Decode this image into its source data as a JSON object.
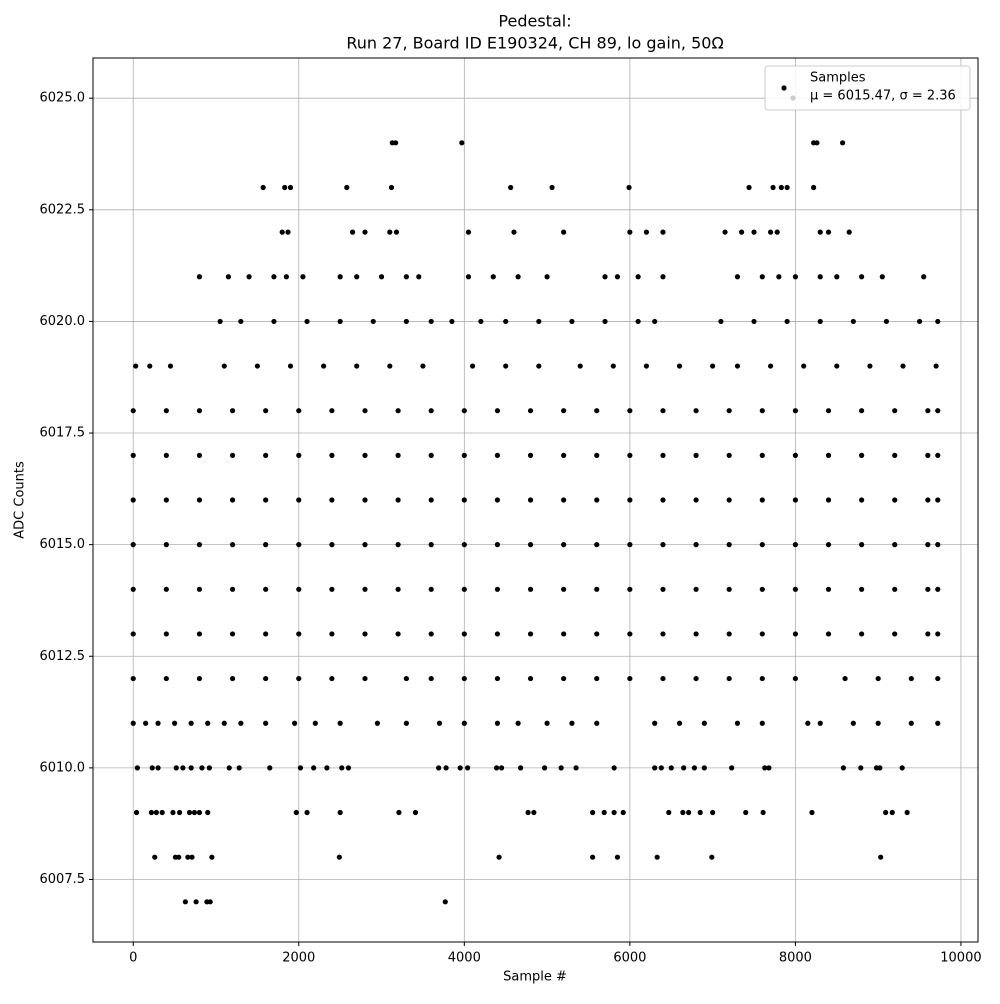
{
  "chart_data": {
    "type": "scatter",
    "title": "Pedestal:",
    "subtitle": "Run 27, Board ID E190324, CH 89, lo gain, 50Ω",
    "x_label": "Sample #",
    "y_label": "ADC Counts",
    "xlim": [
      -486,
      10206
    ],
    "ylim": [
      6006.1,
      6025.9
    ],
    "xticks": [
      0,
      2000,
      4000,
      6000,
      8000,
      10000
    ],
    "yticks": [
      6007.5,
      {
        "value": 6010,
        "label": "6010.0"
      },
      6012.5,
      {
        "value": 6015,
        "label": "6015.0"
      },
      6017.5,
      {
        "value": 6020,
        "label": "6020.0"
      },
      6022.5,
      {
        "value": 6025,
        "label": "6025.0"
      }
    ],
    "grid": true,
    "legend": "upper right",
    "stats_label": "μ = 6015.47, σ = 2.36",
    "series": [
      {
        "name": "Samples",
        "color": "#000000",
        "x": [
          0,
          400,
          800,
          1200,
          1600,
          2000,
          2400,
          2800,
          3200,
          3600,
          4000,
          4400,
          4800,
          5200,
          5600,
          6000,
          6400,
          6800,
          7200,
          7600,
          8000,
          8400,
          8800,
          9200,
          9600,
          9720,
          0,
          400,
          800,
          1200,
          1600,
          2000,
          2400,
          2800,
          3200,
          3600,
          4000,
          4400,
          4800,
          5200,
          5600,
          6000,
          6400,
          6800,
          7200,
          7600,
          8000,
          8400,
          8800,
          9200,
          9600,
          9720,
          0,
          400,
          800,
          1200,
          1600,
          2000,
          2400,
          2800,
          3200,
          3600,
          4000,
          4400,
          4800,
          5200,
          5600,
          6000,
          6400,
          6800,
          7200,
          7600,
          8000,
          8400,
          8800,
          9200,
          9600,
          9720,
          0,
          400,
          800,
          1200,
          1600,
          2000,
          2400,
          2800,
          3200,
          3600,
          4000,
          4400,
          4800,
          5200,
          5600,
          6000,
          6400,
          6800,
          7200,
          7600,
          8000,
          8400,
          8800,
          9200,
          9600,
          9720,
          0,
          400,
          800,
          1200,
          1600,
          2000,
          2400,
          2800,
          3200,
          3600,
          4000,
          4400,
          4800,
          5200,
          5600,
          6000,
          6400,
          6800,
          7200,
          7600,
          8000,
          8400,
          8800,
          9200,
          9600,
          9720,
          0,
          400,
          800,
          1200,
          1600,
          2000,
          2400,
          2800,
          3200,
          3600,
          4000,
          4400,
          4800,
          5200,
          5600,
          6000,
          6400,
          6800,
          7200,
          7600,
          8000,
          8400,
          8800,
          9200,
          9600,
          9720,
          0,
          400,
          800,
          1200,
          1600,
          2000,
          2400,
          2800,
          3300,
          3600,
          4000,
          4400,
          4800,
          5200,
          5600,
          6000,
          6400,
          6800,
          7200,
          7600,
          8000,
          8600,
          9000,
          9400,
          9720,
          30,
          200,
          450,
          1100,
          1500,
          1900,
          2300,
          2700,
          3100,
          3500,
          4100,
          4500,
          4900,
          5400,
          5800,
          6200,
          6600,
          7000,
          7300,
          7700,
          8100,
          8500,
          8900,
          9300,
          9700,
          1050,
          1300,
          1700,
          2100,
          2500,
          2900,
          3300,
          3600,
          3850,
          4200,
          4500,
          4900,
          5300,
          5700,
          6100,
          6300,
          7100,
          7500,
          7900,
          8300,
          8700,
          9100,
          9500,
          9720,
          0,
          150,
          300,
          500,
          700,
          900,
          1100,
          1300,
          1600,
          1950,
          2200,
          2500,
          2950,
          3300,
          3700,
          4000,
          4400,
          4650,
          5000,
          5300,
          5600,
          6300,
          6600,
          6900,
          7300,
          7600,
          8150,
          8300,
          8700,
          9000,
          9400,
          9720,
          800,
          1150,
          1400,
          1700,
          1850,
          2050,
          2500,
          2700,
          3000,
          3300,
          3450,
          4050,
          4350,
          4650,
          5000,
          5700,
          5850,
          6100,
          6400,
          7300,
          7600,
          7800,
          8000,
          8300,
          8500,
          8800,
          9050,
          9550,
          1800,
          1870,
          2650,
          2800,
          3100,
          3180,
          4050,
          4600,
          5200,
          6000,
          6200,
          6400,
          7150,
          7350,
          7500,
          7700,
          7780,
          8300,
          8400,
          8650,
          1570,
          1830,
          1900,
          2580,
          3120,
          4560,
          5060,
          5990,
          7440,
          7730,
          7830,
          7900,
          8220,
          3130,
          3170,
          3970,
          8220,
          8260,
          8570,
          50,
          230,
          300,
          520,
          600,
          700,
          830,
          920,
          1160,
          1280,
          1650,
          2020,
          2180,
          2340,
          2520,
          2600,
          3690,
          3780,
          3950,
          4040,
          4390,
          4450,
          4680,
          4970,
          5170,
          5350,
          5810,
          6300,
          6380,
          6500,
          6650,
          6780,
          6900,
          7230,
          7630,
          7680,
          8580,
          8790,
          8980,
          9020,
          9290,
          40,
          220,
          280,
          350,
          480,
          560,
          680,
          740,
          800,
          900,
          1970,
          2100,
          2500,
          3210,
          3410,
          4770,
          4840,
          5550,
          5690,
          5810,
          5920,
          6470,
          6640,
          6710,
          6850,
          7000,
          7400,
          7610,
          8200,
          9090,
          9170,
          9350,
          260,
          510,
          550,
          660,
          710,
          950,
          2490,
          4420,
          5550,
          5850,
          6330,
          6990,
          9030,
          630,
          760,
          890,
          930,
          3770
        ],
        "values": [
          6013,
          6013,
          6013,
          6013,
          6013,
          6013,
          6013,
          6013,
          6013,
          6013,
          6013,
          6013,
          6013,
          6013,
          6013,
          6013,
          6013,
          6013,
          6013,
          6013,
          6013,
          6013,
          6013,
          6013,
          6013,
          6013,
          6014,
          6014,
          6014,
          6014,
          6014,
          6014,
          6014,
          6014,
          6014,
          6014,
          6014,
          6014,
          6014,
          6014,
          6014,
          6014,
          6014,
          6014,
          6014,
          6014,
          6014,
          6014,
          6014,
          6014,
          6014,
          6014,
          6015,
          6015,
          6015,
          6015,
          6015,
          6015,
          6015,
          6015,
          6015,
          6015,
          6015,
          6015,
          6015,
          6015,
          6015,
          6015,
          6015,
          6015,
          6015,
          6015,
          6015,
          6015,
          6015,
          6015,
          6015,
          6015,
          6016,
          6016,
          6016,
          6016,
          6016,
          6016,
          6016,
          6016,
          6016,
          6016,
          6016,
          6016,
          6016,
          6016,
          6016,
          6016,
          6016,
          6016,
          6016,
          6016,
          6016,
          6016,
          6016,
          6016,
          6016,
          6016,
          6017,
          6017,
          6017,
          6017,
          6017,
          6017,
          6017,
          6017,
          6017,
          6017,
          6017,
          6017,
          6017,
          6017,
          6017,
          6017,
          6017,
          6017,
          6017,
          6017,
          6017,
          6017,
          6017,
          6017,
          6017,
          6017,
          6018,
          6018,
          6018,
          6018,
          6018,
          6018,
          6018,
          6018,
          6018,
          6018,
          6018,
          6018,
          6018,
          6018,
          6018,
          6018,
          6018,
          6018,
          6018,
          6018,
          6018,
          6018,
          6018,
          6018,
          6018,
          6018,
          6012,
          6012,
          6012,
          6012,
          6012,
          6012,
          6012,
          6012,
          6012,
          6012,
          6012,
          6012,
          6012,
          6012,
          6012,
          6012,
          6012,
          6012,
          6012,
          6012,
          6012,
          6012,
          6012,
          6012,
          6012,
          6019,
          6019,
          6019,
          6019,
          6019,
          6019,
          6019,
          6019,
          6019,
          6019,
          6019,
          6019,
          6019,
          6019,
          6019,
          6019,
          6019,
          6019,
          6019,
          6019,
          6019,
          6019,
          6019,
          6019,
          6019,
          6020,
          6020,
          6020,
          6020,
          6020,
          6020,
          6020,
          6020,
          6020,
          6020,
          6020,
          6020,
          6020,
          6020,
          6020,
          6020,
          6020,
          6020,
          6020,
          6020,
          6020,
          6020,
          6020,
          6020,
          6011,
          6011,
          6011,
          6011,
          6011,
          6011,
          6011,
          6011,
          6011,
          6011,
          6011,
          6011,
          6011,
          6011,
          6011,
          6011,
          6011,
          6011,
          6011,
          6011,
          6011,
          6011,
          6011,
          6011,
          6011,
          6011,
          6011,
          6011,
          6011,
          6011,
          6011,
          6011,
          6021,
          6021,
          6021,
          6021,
          6021,
          6021,
          6021,
          6021,
          6021,
          6021,
          6021,
          6021,
          6021,
          6021,
          6021,
          6021,
          6021,
          6021,
          6021,
          6021,
          6021,
          6021,
          6021,
          6021,
          6021,
          6021,
          6021,
          6021,
          6022,
          6022,
          6022,
          6022,
          6022,
          6022,
          6022,
          6022,
          6022,
          6022,
          6022,
          6022,
          6022,
          6022,
          6022,
          6022,
          6022,
          6022,
          6022,
          6022,
          6023,
          6023,
          6023,
          6023,
          6023,
          6023,
          6023,
          6023,
          6023,
          6023,
          6023,
          6023,
          6023,
          6024,
          6024,
          6024,
          6024,
          6024,
          6024,
          6010,
          6010,
          6010,
          6010,
          6010,
          6010,
          6010,
          6010,
          6010,
          6010,
          6010,
          6010,
          6010,
          6010,
          6010,
          6010,
          6010,
          6010,
          6010,
          6010,
          6010,
          6010,
          6010,
          6010,
          6010,
          6010,
          6010,
          6010,
          6010,
          6010,
          6010,
          6010,
          6010,
          6010,
          6010,
          6010,
          6010,
          6010,
          6010,
          6010,
          6010,
          6009,
          6009,
          6009,
          6009,
          6009,
          6009,
          6009,
          6009,
          6009,
          6009,
          6009,
          6009,
          6009,
          6009,
          6009,
          6009,
          6009,
          6009,
          6009,
          6009,
          6009,
          6009,
          6009,
          6009,
          6009,
          6009,
          6009,
          6009,
          6009,
          6009,
          6009,
          6009,
          6008,
          6008,
          6008,
          6008,
          6008,
          6008,
          6008,
          6008,
          6008,
          6008,
          6008,
          6008,
          6008,
          6007,
          6007,
          6007,
          6007,
          6007
        ]
      }
    ]
  }
}
